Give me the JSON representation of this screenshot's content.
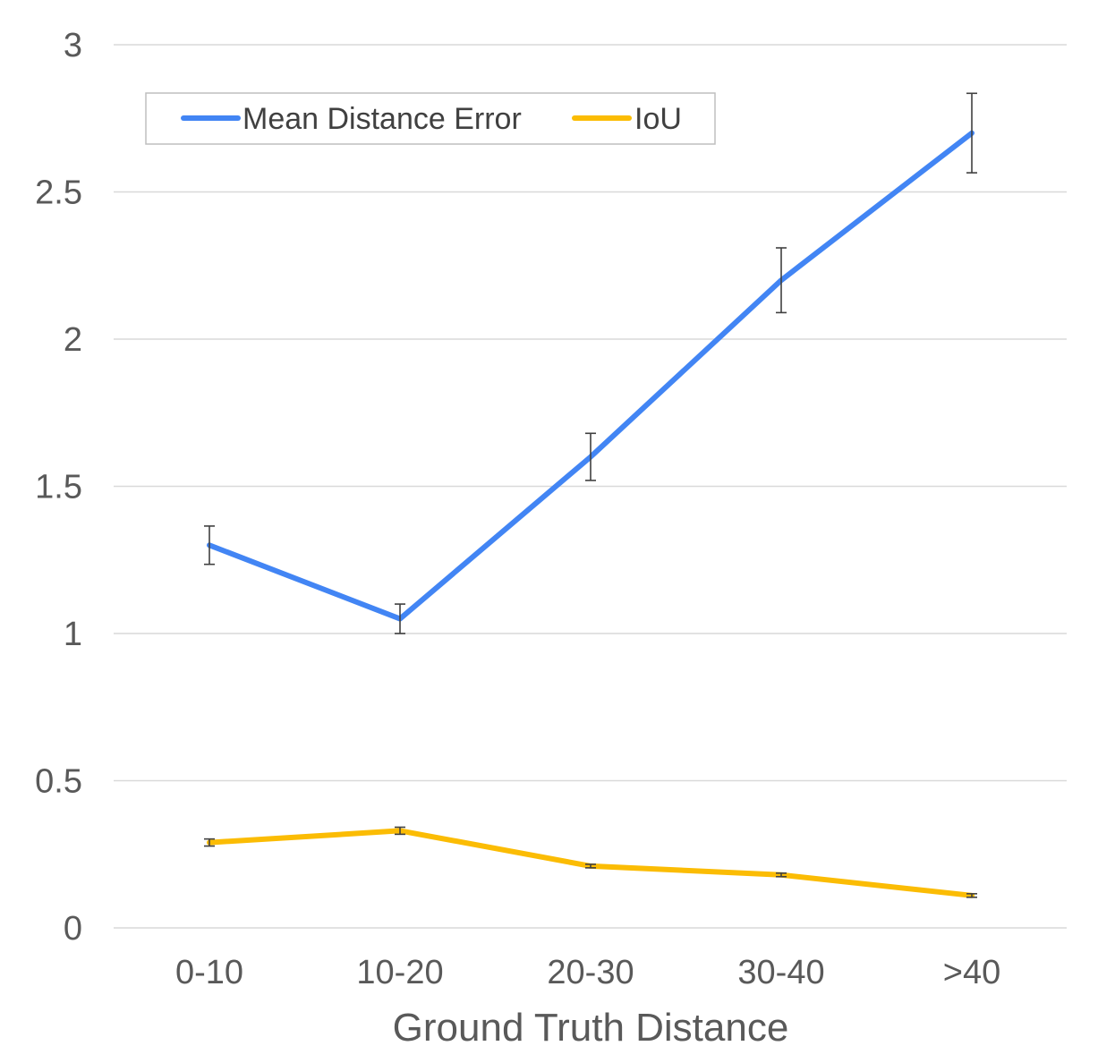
{
  "chart_data": {
    "type": "line",
    "title": "",
    "xlabel": "Ground Truth Distance",
    "ylabel": "",
    "categories": [
      "0-10",
      "10-20",
      "20-30",
      "30-40",
      ">40"
    ],
    "ylim": [
      0,
      3
    ],
    "yticks": [
      0,
      0.5,
      1,
      1.5,
      2,
      2.5,
      3
    ],
    "ytick_labels": [
      "0",
      "0.5",
      "1",
      "1.5",
      "2",
      "2.5",
      "3"
    ],
    "grid": "horizontal",
    "legend_position": "top-left",
    "series": [
      {
        "name": "Mean Distance Error",
        "color": "#4285F4",
        "values": [
          1.3,
          1.05,
          1.6,
          2.2,
          2.7
        ],
        "error": [
          0.065,
          0.05,
          0.08,
          0.11,
          0.135
        ]
      },
      {
        "name": "IoU",
        "color": "#FBBC04",
        "values": [
          0.29,
          0.33,
          0.21,
          0.18,
          0.11
        ],
        "error": [
          0.012,
          0.012,
          0.006,
          0.006,
          0.006
        ]
      }
    ]
  }
}
